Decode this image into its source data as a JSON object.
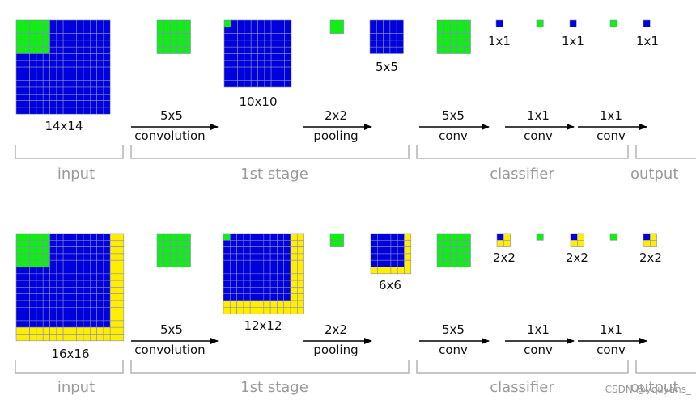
{
  "colors": {
    "input_cell": "#0000dd",
    "filter_cell": "#11ee11",
    "padding_cell": "#ffee00",
    "grid_line": "#8888cc",
    "arrow": "#000000",
    "bracket": "#b4b4b4",
    "stage_text": "#9a9a9a"
  },
  "rows": [
    {
      "name": "without-padding",
      "input_size": "14x14",
      "conv_output_size": "10x10",
      "pool_output_size": "5x5",
      "output_sizes": [
        "1x1",
        "1x1",
        "1x1"
      ],
      "padded": false
    },
    {
      "name": "with-padding",
      "input_size": "16x16",
      "conv_output_size": "12x12",
      "pool_output_size": "6x6",
      "output_sizes": [
        "2x2",
        "2x2",
        "2x2"
      ],
      "padded": true
    }
  ],
  "arrows": {
    "conv1": {
      "top": "5x5",
      "bottom": "convolution"
    },
    "pool": {
      "top": "2x2",
      "bottom": "pooling"
    },
    "conv2": {
      "top": "5x5",
      "bottom": "conv"
    },
    "conv3": {
      "top": "1x1",
      "bottom": "conv"
    },
    "conv4": {
      "top": "1x1",
      "bottom": "conv"
    }
  },
  "stages": {
    "input": "input",
    "first_stage": "1st stage",
    "classifier": "classifier",
    "output": "output"
  },
  "watermark": "CSDN @youyans_"
}
